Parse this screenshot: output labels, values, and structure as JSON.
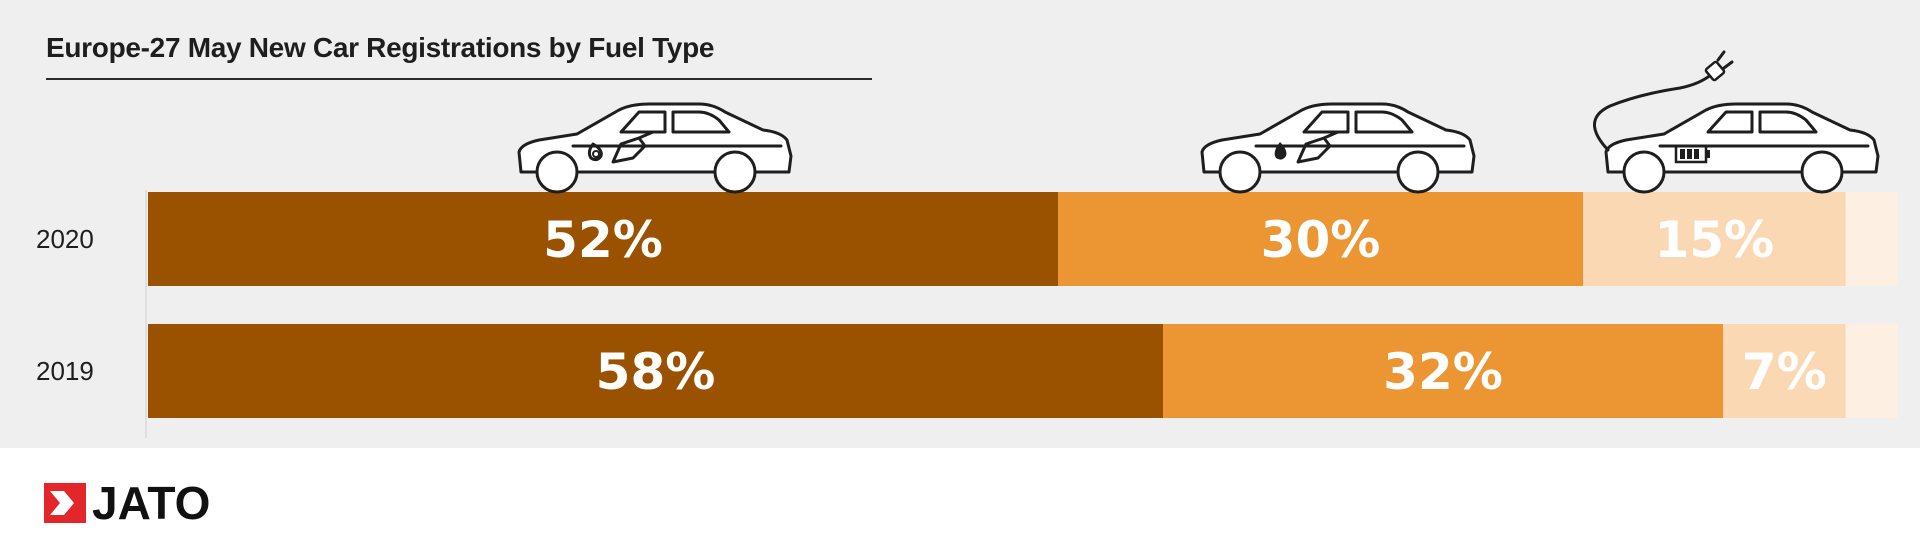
{
  "chart_data": {
    "type": "bar",
    "stacked": true,
    "orientation": "horizontal",
    "title": "Europe-27 May New Car Registrations by Fuel Type",
    "categories": [
      "2020",
      "2019"
    ],
    "series": [
      {
        "values": [
          52,
          58
        ],
        "labels": [
          "52%",
          "58%"
        ],
        "color": "#9a5200"
      },
      {
        "values": [
          30,
          32
        ],
        "labels": [
          "30%",
          "32%"
        ],
        "color": "#ec9633"
      },
      {
        "values": [
          15,
          7
        ],
        "labels": [
          "15%",
          "7%"
        ],
        "color": "#fbd8b4"
      },
      {
        "values": [
          3,
          3
        ],
        "labels": [
          "",
          ""
        ],
        "color": "#fdf0e2"
      }
    ],
    "xlim": [
      0,
      100
    ],
    "grid": false,
    "icons": [
      "petrol-car-icon",
      "diesel-car-icon",
      "electrified-car-icon"
    ]
  },
  "brand": {
    "logo_text": "JATO",
    "logo_color": "#e3262a"
  }
}
